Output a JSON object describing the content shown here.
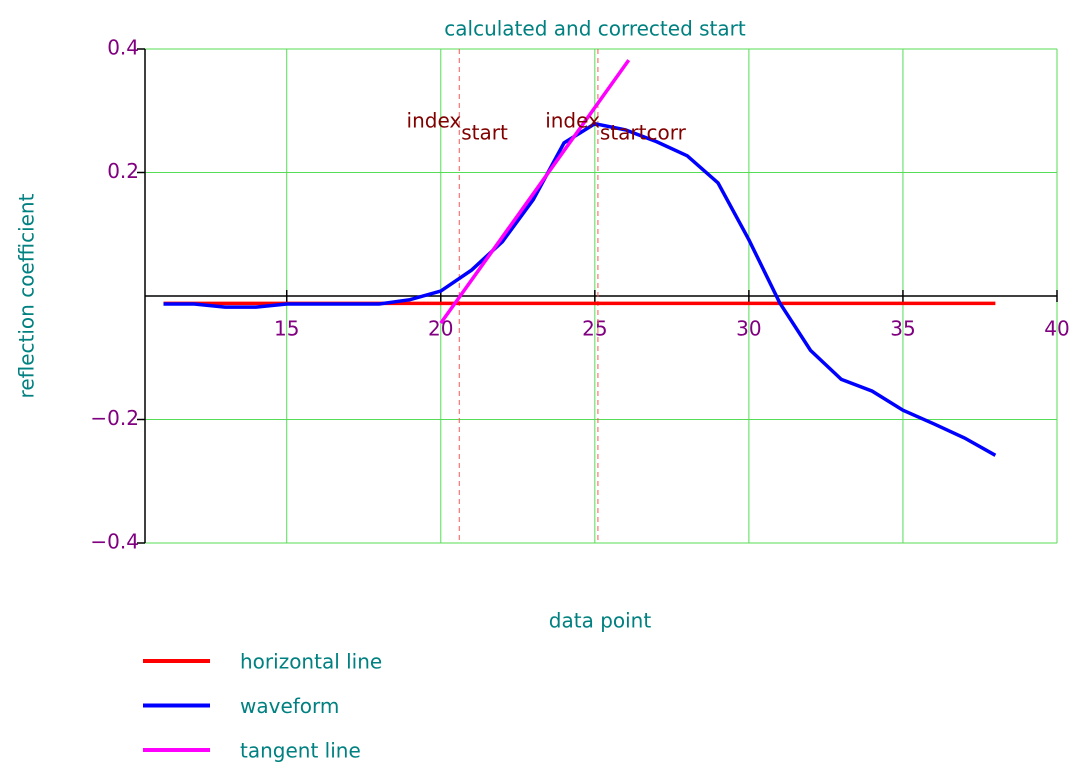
{
  "chart_data": {
    "type": "line",
    "title": "calculated and corrected start",
    "x_label": "data point",
    "y_label": "reflection coefficient",
    "xlim": [
      10.4,
      40
    ],
    "ylim": [
      -0.4,
      0.4
    ],
    "xticks": [
      15,
      20,
      25,
      30,
      35,
      40
    ],
    "yticks": [
      {
        "value": -0.4,
        "label": "−0.4"
      },
      {
        "value": -0.2,
        "label": "−0.2"
      },
      0.2,
      0.4
    ],
    "grid": true,
    "series": [
      {
        "name": "horizontal line",
        "color": "#ff0000",
        "x": [
          11,
          38
        ],
        "values": [
          -0.012,
          -0.012
        ]
      },
      {
        "name": "waveform",
        "color": "#0000ff",
        "x": [
          11,
          12,
          13,
          14,
          15,
          16,
          17,
          18,
          19,
          20,
          21,
          22,
          23,
          24,
          25,
          26,
          27,
          28,
          29,
          30,
          31,
          32,
          33,
          34,
          35,
          36,
          37,
          38
        ],
        "values": [
          -0.013,
          -0.013,
          -0.018,
          -0.018,
          -0.013,
          -0.013,
          -0.013,
          -0.013,
          -0.006,
          0.008,
          0.042,
          0.088,
          0.156,
          0.248,
          0.279,
          0.269,
          0.25,
          0.227,
          0.183,
          0.091,
          -0.011,
          -0.088,
          -0.135,
          -0.154,
          -0.185,
          -0.207,
          -0.23,
          -0.258
        ]
      },
      {
        "name": "tangent line",
        "color": "#ff00ff",
        "x": [
          20,
          26.1
        ],
        "values": [
          -0.044,
          0.382
        ]
      }
    ],
    "markers": [
      {
        "name": "index",
        "subscript": "start",
        "x": 20.6
      },
      {
        "name": "index",
        "subscript": "startcorr",
        "x": 25.1
      }
    ]
  }
}
